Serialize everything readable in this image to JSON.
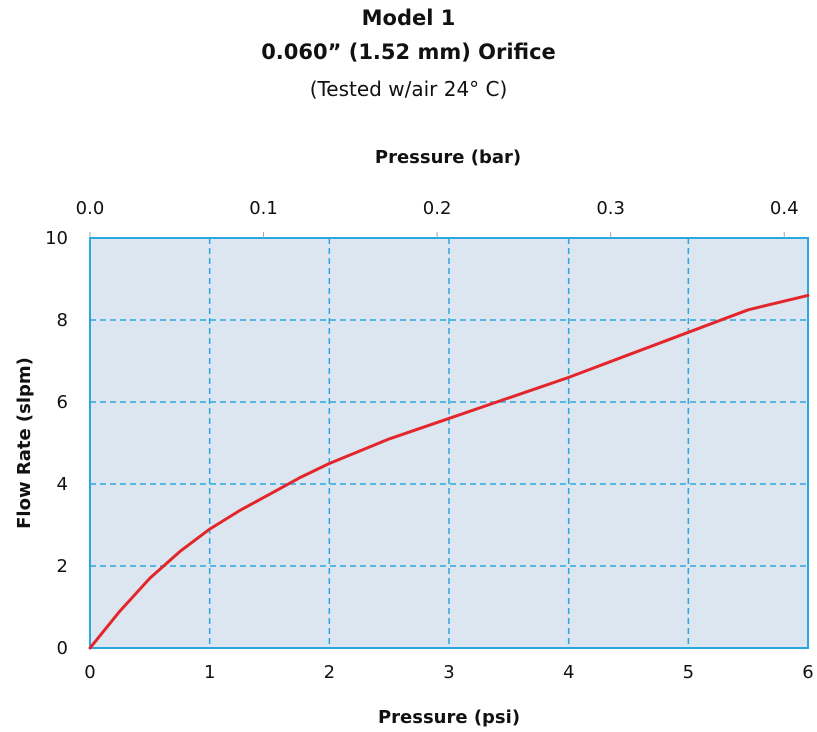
{
  "header": {
    "title": "Model 1",
    "subtitle": "0.060” (1.52 mm) Orifice",
    "note": "(Tested w/air 24° C)"
  },
  "chart_data": {
    "type": "line",
    "title": "Model 1",
    "xlabel": "Pressure (psi)",
    "x2label": "Pressure (bar)",
    "ylabel": "Flow Rate (slpm)",
    "xlim": [
      0,
      6
    ],
    "ylim": [
      0,
      10
    ],
    "x2lim": [
      0,
      0.4137
    ],
    "xticks": [
      "0",
      "1",
      "2",
      "3",
      "4",
      "5",
      "6"
    ],
    "x2ticks": [
      "0.0",
      "0.1",
      "0.2",
      "0.3",
      "0.4"
    ],
    "yticks": [
      "0",
      "2",
      "4",
      "6",
      "8",
      "10"
    ],
    "grid": true,
    "series": [
      {
        "color": "#e3262b",
        "x": [
          0,
          0.25,
          0.5,
          0.75,
          1.0,
          1.25,
          1.5,
          1.75,
          2.0,
          2.5,
          3.0,
          3.5,
          4.0,
          4.5,
          5.0,
          5.5,
          6.0
        ],
        "y": [
          0,
          0.9,
          1.7,
          2.35,
          2.9,
          3.35,
          3.75,
          4.15,
          4.5,
          5.1,
          5.6,
          6.1,
          6.6,
          7.15,
          7.7,
          8.25,
          8.6
        ]
      }
    ],
    "plot_background": "#dce6f1",
    "grid_color": "#2ba6de"
  }
}
